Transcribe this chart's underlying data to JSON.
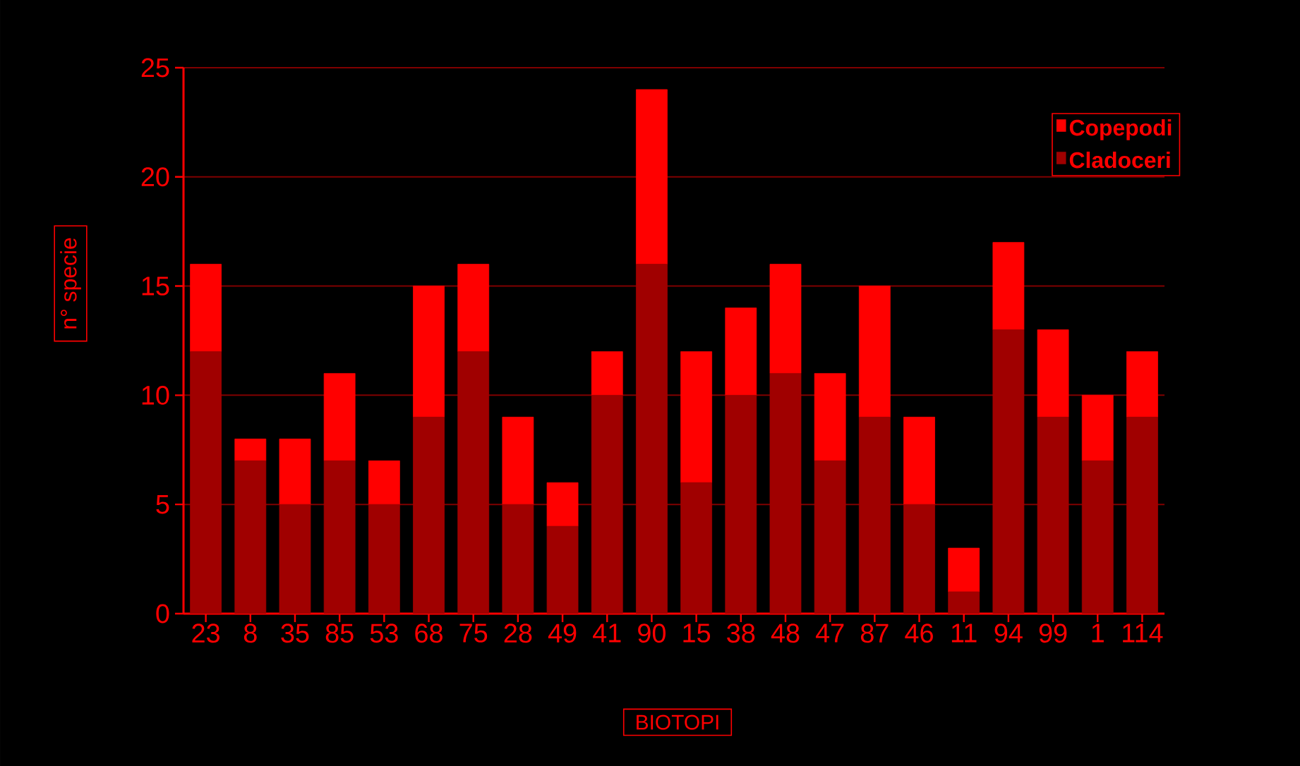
{
  "chart_data": {
    "type": "bar",
    "stacked": true,
    "xlabel": "BIOTOPI",
    "ylabel": "n° specie",
    "categories": [
      "23",
      "8",
      "35",
      "85",
      "53",
      "68",
      "75",
      "28",
      "49",
      "41",
      "90",
      "15",
      "38",
      "48",
      "47",
      "87",
      "46",
      "11",
      "94",
      "99",
      "1",
      "114"
    ],
    "series": [
      {
        "name": "Cladoceri",
        "color": "#a00000",
        "values": [
          12,
          7,
          5,
          7,
          5,
          9,
          12,
          5,
          4,
          10,
          16,
          6,
          10,
          11,
          7,
          9,
          5,
          1,
          13,
          9,
          7,
          9
        ]
      },
      {
        "name": "Copepodi",
        "color": "#ff0000",
        "values": [
          4,
          1,
          3,
          4,
          2,
          6,
          4,
          4,
          2,
          2,
          8,
          6,
          4,
          5,
          4,
          6,
          4,
          2,
          4,
          4,
          3,
          3
        ]
      }
    ],
    "ylim": [
      0,
      25
    ],
    "yticks": [
      0,
      5,
      10,
      15,
      20,
      25
    ],
    "grid": "y",
    "legend": "top right"
  }
}
